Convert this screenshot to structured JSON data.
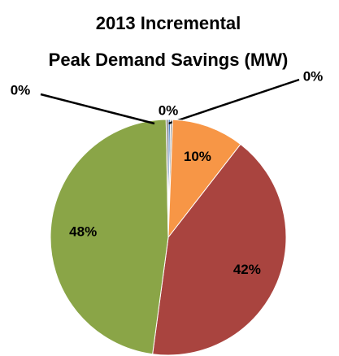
{
  "chart_data": {
    "type": "pie",
    "title": [
      "2013 Incremental",
      "Peak Demand Savings (MW)"
    ],
    "values": [
      0.3,
      0.3,
      10,
      42,
      48,
      0.3
    ],
    "value_labels": [
      "0%",
      "0%",
      "10%",
      "42%",
      "48%",
      "0%"
    ],
    "colors": [
      "#4f81bd",
      "#a5a5a5",
      "#f79646",
      "#a9443f",
      "#8aa547",
      "#7f7f7f"
    ]
  }
}
